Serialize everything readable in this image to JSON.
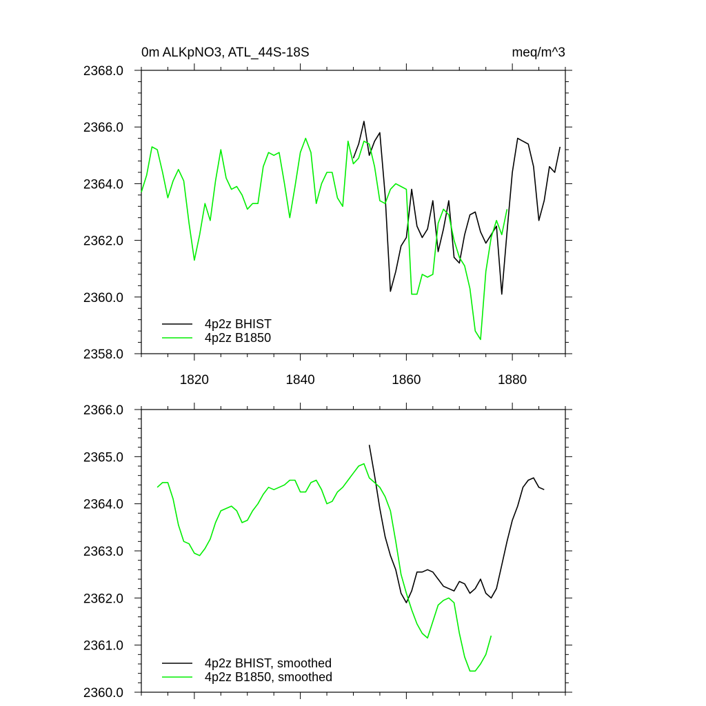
{
  "chart_data": [
    {
      "type": "line",
      "title": "0m ALKpNO3, ATL_44S-18S",
      "units": "meq/m^3",
      "xlim": [
        1810,
        1890
      ],
      "ylim": [
        2358.0,
        2368.0
      ],
      "xticks": [
        1820,
        1840,
        1860,
        1880
      ],
      "xtick_labels": [
        "1820",
        "1840",
        "1860",
        "1880"
      ],
      "yticks": [
        2358.0,
        2360.0,
        2362.0,
        2364.0,
        2366.0,
        2368.0
      ],
      "ytick_labels": [
        "2358.0",
        "2360.0",
        "2362.0",
        "2364.0",
        "2366.0",
        "2368.0"
      ],
      "legend_position": "bottom-left",
      "series": [
        {
          "name": "4p2z BHIST",
          "color": "#000000",
          "x": [
            1850,
            1851,
            1852,
            1853,
            1854,
            1855,
            1856,
            1857,
            1858,
            1859,
            1860,
            1861,
            1862,
            1863,
            1864,
            1865,
            1866,
            1867,
            1868,
            1869,
            1870,
            1871,
            1872,
            1873,
            1874,
            1875,
            1876,
            1877,
            1878,
            1879,
            1880,
            1881,
            1882,
            1883,
            1884,
            1885,
            1886,
            1887,
            1888,
            1889
          ],
          "y": [
            2364.9,
            2365.4,
            2366.2,
            2365.0,
            2365.5,
            2365.8,
            2363.6,
            2360.2,
            2360.9,
            2361.8,
            2362.1,
            2363.8,
            2362.5,
            2362.1,
            2362.4,
            2363.4,
            2361.6,
            2362.4,
            2363.4,
            2361.4,
            2361.2,
            2362.2,
            2362.9,
            2363.0,
            2362.3,
            2361.9,
            2362.2,
            2362.5,
            2360.1,
            2362.3,
            2364.4,
            2365.6,
            2365.5,
            2365.4,
            2364.6,
            2362.7,
            2363.4,
            2364.6,
            2364.4,
            2365.3
          ]
        },
        {
          "name": "4p2z B1850",
          "color": "#00ee00",
          "x": [
            1810,
            1811,
            1812,
            1813,
            1814,
            1815,
            1816,
            1817,
            1818,
            1819,
            1820,
            1821,
            1822,
            1823,
            1824,
            1825,
            1826,
            1827,
            1828,
            1829,
            1830,
            1831,
            1832,
            1833,
            1834,
            1835,
            1836,
            1837,
            1838,
            1839,
            1840,
            1841,
            1842,
            1843,
            1844,
            1845,
            1846,
            1847,
            1848,
            1849,
            1850,
            1851,
            1852,
            1853,
            1854,
            1855,
            1856,
            1857,
            1858,
            1859,
            1860,
            1861,
            1862,
            1863,
            1864,
            1865,
            1866,
            1867,
            1868,
            1869,
            1870,
            1871,
            1872,
            1873,
            1874,
            1875,
            1876,
            1877,
            1878,
            1879
          ],
          "y": [
            2363.7,
            2364.3,
            2365.3,
            2365.2,
            2364.4,
            2363.5,
            2364.1,
            2364.5,
            2364.1,
            2362.6,
            2361.3,
            2362.2,
            2363.3,
            2362.7,
            2364.1,
            2365.2,
            2364.2,
            2363.8,
            2363.9,
            2363.6,
            2363.1,
            2363.3,
            2363.3,
            2364.6,
            2365.1,
            2365.0,
            2365.1,
            2364.0,
            2362.8,
            2363.9,
            2365.1,
            2365.6,
            2365.1,
            2363.3,
            2364.0,
            2364.4,
            2364.4,
            2363.5,
            2363.2,
            2365.5,
            2364.7,
            2364.9,
            2365.5,
            2365.4,
            2364.6,
            2363.4,
            2363.3,
            2363.8,
            2364.0,
            2363.9,
            2363.8,
            2360.1,
            2360.1,
            2360.8,
            2360.7,
            2360.8,
            2362.6,
            2363.1,
            2362.9,
            2362.0,
            2361.4,
            2361.1,
            2360.3,
            2358.8,
            2358.5,
            2360.9,
            2362.1,
            2362.7,
            2362.2,
            2363.1
          ]
        }
      ]
    },
    {
      "type": "line",
      "title": "",
      "xlim": [
        1810,
        1890
      ],
      "ylim": [
        2360.0,
        2366.0
      ],
      "xticks": [
        1820,
        1840,
        1860,
        1880
      ],
      "yticks": [
        2360.0,
        2361.0,
        2362.0,
        2363.0,
        2364.0,
        2365.0,
        2366.0
      ],
      "ytick_labels": [
        "2360.0",
        "2361.0",
        "2362.0",
        "2363.0",
        "2364.0",
        "2365.0",
        "2366.0"
      ],
      "legend_position": "bottom-left",
      "series": [
        {
          "name": "4p2z BHIST, smoothed",
          "color": "#000000",
          "x": [
            1853,
            1854,
            1855,
            1856,
            1857,
            1858,
            1859,
            1860,
            1861,
            1862,
            1863,
            1864,
            1865,
            1866,
            1867,
            1868,
            1869,
            1870,
            1871,
            1872,
            1873,
            1874,
            1875,
            1876,
            1877,
            1878,
            1879,
            1880,
            1881,
            1882,
            1883,
            1884,
            1885,
            1886
          ],
          "y": [
            2365.25,
            2364.6,
            2363.9,
            2363.3,
            2362.9,
            2362.6,
            2362.1,
            2361.9,
            2362.15,
            2362.55,
            2362.55,
            2362.6,
            2362.55,
            2362.4,
            2362.25,
            2362.2,
            2362.15,
            2362.35,
            2362.3,
            2362.1,
            2362.2,
            2362.4,
            2362.1,
            2362.0,
            2362.2,
            2362.7,
            2363.2,
            2363.65,
            2363.95,
            2364.35,
            2364.5,
            2364.55,
            2364.35,
            2364.3
          ]
        },
        {
          "name": "4p2z B1850, smoothed",
          "color": "#00ee00",
          "x": [
            1813,
            1814,
            1815,
            1816,
            1817,
            1818,
            1819,
            1820,
            1821,
            1822,
            1823,
            1824,
            1825,
            1826,
            1827,
            1828,
            1829,
            1830,
            1831,
            1832,
            1833,
            1834,
            1835,
            1836,
            1837,
            1838,
            1839,
            1840,
            1841,
            1842,
            1843,
            1844,
            1845,
            1846,
            1847,
            1848,
            1849,
            1850,
            1851,
            1852,
            1853,
            1854,
            1855,
            1856,
            1857,
            1858,
            1859,
            1860,
            1861,
            1862,
            1863,
            1864,
            1865,
            1866,
            1867,
            1868,
            1869,
            1870,
            1871,
            1872,
            1873,
            1874,
            1875,
            1876
          ],
          "y": [
            2364.35,
            2364.45,
            2364.45,
            2364.1,
            2363.55,
            2363.2,
            2363.15,
            2362.95,
            2362.9,
            2363.05,
            2363.25,
            2363.6,
            2363.85,
            2363.9,
            2363.95,
            2363.85,
            2363.6,
            2363.65,
            2363.85,
            2364.0,
            2364.2,
            2364.35,
            2364.3,
            2364.35,
            2364.4,
            2364.5,
            2364.5,
            2364.25,
            2364.25,
            2364.45,
            2364.5,
            2364.3,
            2364.0,
            2364.05,
            2364.25,
            2364.35,
            2364.5,
            2364.65,
            2364.8,
            2364.85,
            2364.55,
            2364.45,
            2364.35,
            2364.15,
            2363.85,
            2363.2,
            2362.5,
            2362.1,
            2361.75,
            2361.45,
            2361.25,
            2361.15,
            2361.5,
            2361.85,
            2361.95,
            2362.0,
            2361.9,
            2361.25,
            2360.75,
            2360.45,
            2360.45,
            2360.6,
            2360.8,
            2361.2
          ]
        }
      ]
    }
  ]
}
